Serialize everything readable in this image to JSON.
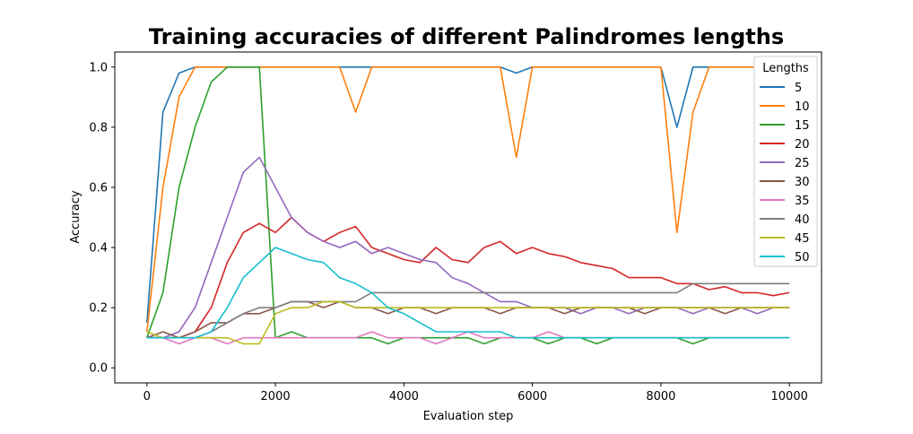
{
  "chart_data": {
    "type": "line",
    "title": "Training accuracies of different Palindromes lengths",
    "xlabel": "Evaluation step",
    "ylabel": "Accuracy",
    "xlim": [
      -500,
      10500
    ],
    "ylim": [
      -0.05,
      1.05
    ],
    "x_ticks": [
      0,
      2000,
      4000,
      6000,
      8000,
      10000
    ],
    "y_ticks": [
      0.0,
      0.2,
      0.4,
      0.6,
      0.8,
      1.0
    ],
    "y_tick_labels": [
      "0.0",
      "0.2",
      "0.4",
      "0.6",
      "0.8",
      "1.0"
    ],
    "legend_title": "Lengths",
    "legend_position": "upper right",
    "grid": false,
    "x": [
      0,
      250,
      500,
      750,
      1000,
      1250,
      1500,
      1750,
      2000,
      2250,
      2500,
      2750,
      3000,
      3250,
      3500,
      3750,
      4000,
      4250,
      4500,
      4750,
      5000,
      5250,
      5500,
      5750,
      6000,
      6250,
      6500,
      6750,
      7000,
      7250,
      7500,
      7750,
      8000,
      8250,
      8500,
      8750,
      9000,
      9250,
      9500,
      9750,
      10000
    ],
    "series": [
      {
        "name": "5",
        "color": "#1f77b4",
        "values": [
          0.15,
          0.85,
          0.98,
          1.0,
          1.0,
          1.0,
          1.0,
          1.0,
          1.0,
          1.0,
          1.0,
          1.0,
          1.0,
          1.0,
          1.0,
          1.0,
          1.0,
          1.0,
          1.0,
          1.0,
          1.0,
          1.0,
          1.0,
          0.98,
          1.0,
          1.0,
          1.0,
          1.0,
          1.0,
          1.0,
          1.0,
          1.0,
          1.0,
          0.8,
          1.0,
          1.0,
          1.0,
          1.0,
          1.0,
          1.0,
          1.0
        ]
      },
      {
        "name": "10",
        "color": "#ff7f0e",
        "values": [
          0.12,
          0.6,
          0.9,
          1.0,
          1.0,
          1.0,
          1.0,
          1.0,
          1.0,
          1.0,
          1.0,
          1.0,
          1.0,
          0.85,
          1.0,
          1.0,
          1.0,
          1.0,
          1.0,
          1.0,
          1.0,
          1.0,
          1.0,
          0.7,
          1.0,
          1.0,
          1.0,
          1.0,
          1.0,
          1.0,
          1.0,
          1.0,
          1.0,
          0.45,
          0.85,
          1.0,
          1.0,
          1.0,
          1.0,
          1.0,
          1.0
        ]
      },
      {
        "name": "15",
        "color": "#2ca02c",
        "values": [
          0.1,
          0.25,
          0.6,
          0.8,
          0.95,
          1.0,
          1.0,
          1.0,
          0.1,
          0.12,
          0.1,
          0.1,
          0.1,
          0.1,
          0.1,
          0.08,
          0.1,
          0.1,
          0.1,
          0.1,
          0.1,
          0.08,
          0.1,
          0.1,
          0.1,
          0.08,
          0.1,
          0.1,
          0.08,
          0.1,
          0.1,
          0.1,
          0.1,
          0.1,
          0.08,
          0.1,
          0.1,
          0.1,
          0.1,
          0.1,
          0.1
        ]
      },
      {
        "name": "20",
        "color": "#d62728",
        "values": [
          0.1,
          0.1,
          0.1,
          0.12,
          0.2,
          0.35,
          0.45,
          0.48,
          0.45,
          0.5,
          0.45,
          0.42,
          0.45,
          0.47,
          0.4,
          0.38,
          0.36,
          0.35,
          0.4,
          0.36,
          0.35,
          0.4,
          0.42,
          0.38,
          0.4,
          0.38,
          0.37,
          0.35,
          0.34,
          0.33,
          0.3,
          0.3,
          0.3,
          0.28,
          0.28,
          0.26,
          0.27,
          0.25,
          0.25,
          0.24,
          0.25
        ]
      },
      {
        "name": "25",
        "color": "#9467bd",
        "values": [
          0.1,
          0.1,
          0.12,
          0.2,
          0.35,
          0.5,
          0.65,
          0.7,
          0.6,
          0.5,
          0.45,
          0.42,
          0.4,
          0.42,
          0.38,
          0.4,
          0.38,
          0.36,
          0.35,
          0.3,
          0.28,
          0.25,
          0.22,
          0.22,
          0.2,
          0.2,
          0.2,
          0.18,
          0.2,
          0.2,
          0.18,
          0.2,
          0.2,
          0.2,
          0.18,
          0.2,
          0.2,
          0.2,
          0.18,
          0.2,
          0.2
        ]
      },
      {
        "name": "30",
        "color": "#8c564b",
        "values": [
          0.1,
          0.12,
          0.1,
          0.12,
          0.15,
          0.15,
          0.18,
          0.18,
          0.2,
          0.22,
          0.22,
          0.2,
          0.22,
          0.2,
          0.2,
          0.18,
          0.2,
          0.2,
          0.18,
          0.2,
          0.2,
          0.2,
          0.18,
          0.2,
          0.2,
          0.2,
          0.18,
          0.2,
          0.2,
          0.2,
          0.2,
          0.18,
          0.2,
          0.2,
          0.2,
          0.2,
          0.18,
          0.2,
          0.2,
          0.2,
          0.2
        ]
      },
      {
        "name": "35",
        "color": "#e377c2",
        "values": [
          0.1,
          0.1,
          0.08,
          0.1,
          0.1,
          0.08,
          0.1,
          0.1,
          0.1,
          0.1,
          0.1,
          0.1,
          0.1,
          0.1,
          0.12,
          0.1,
          0.1,
          0.1,
          0.08,
          0.1,
          0.12,
          0.1,
          0.1,
          0.1,
          0.1,
          0.12,
          0.1,
          0.1,
          0.1,
          0.1,
          0.1,
          0.1,
          0.1,
          0.1,
          0.1,
          0.1,
          0.1,
          0.1,
          0.1,
          0.1,
          0.1
        ]
      },
      {
        "name": "40",
        "color": "#7f7f7f",
        "values": [
          0.1,
          0.1,
          0.1,
          0.1,
          0.12,
          0.15,
          0.18,
          0.2,
          0.2,
          0.22,
          0.22,
          0.22,
          0.22,
          0.22,
          0.25,
          0.25,
          0.25,
          0.25,
          0.25,
          0.25,
          0.25,
          0.25,
          0.25,
          0.25,
          0.25,
          0.25,
          0.25,
          0.25,
          0.25,
          0.25,
          0.25,
          0.25,
          0.25,
          0.25,
          0.28,
          0.28,
          0.28,
          0.28,
          0.28,
          0.28,
          0.28
        ]
      },
      {
        "name": "45",
        "color": "#bcbd22",
        "values": [
          0.12,
          0.1,
          0.1,
          0.1,
          0.1,
          0.1,
          0.08,
          0.08,
          0.18,
          0.2,
          0.2,
          0.22,
          0.22,
          0.2,
          0.2,
          0.2,
          0.2,
          0.2,
          0.2,
          0.2,
          0.2,
          0.2,
          0.2,
          0.2,
          0.2,
          0.2,
          0.2,
          0.2,
          0.2,
          0.2,
          0.2,
          0.2,
          0.2,
          0.2,
          0.2,
          0.2,
          0.2,
          0.2,
          0.2,
          0.2,
          0.2
        ]
      },
      {
        "name": "50",
        "color": "#17becf",
        "values": [
          0.1,
          0.1,
          0.1,
          0.1,
          0.12,
          0.2,
          0.3,
          0.35,
          0.4,
          0.38,
          0.36,
          0.35,
          0.3,
          0.28,
          0.25,
          0.2,
          0.18,
          0.15,
          0.12,
          0.12,
          0.12,
          0.12,
          0.12,
          0.1,
          0.1,
          0.1,
          0.1,
          0.1,
          0.1,
          0.1,
          0.1,
          0.1,
          0.1,
          0.1,
          0.1,
          0.1,
          0.1,
          0.1,
          0.1,
          0.1,
          0.1
        ]
      }
    ]
  }
}
